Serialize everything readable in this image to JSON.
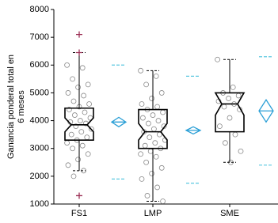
{
  "chart_data": {
    "type": "boxplot",
    "ylabel_lines": [
      "Ganancia ponderal total en",
      "6 meses"
    ],
    "categories": [
      "FS1",
      "LMP",
      "SME"
    ],
    "ylim": [
      1000,
      8000
    ],
    "yticks": [
      1000,
      2000,
      3000,
      4000,
      5000,
      6000,
      7000,
      8000
    ],
    "box_color": "#000000",
    "point_color": "#8a8a8a",
    "outlier_color": "#9b2f55",
    "mean_color": "#2a9fd6",
    "band_color": "#5bc8e0",
    "groups": [
      {
        "whisker_low": 2200,
        "q1": 3300,
        "median": 3850,
        "q3": 4450,
        "whisker_high": 6450,
        "notch_low": 3600,
        "notch_high": 4100,
        "outliers": [
          7100,
          6450,
          1300
        ],
        "mean": 3950,
        "ci_low": 3780,
        "ci_high": 4120,
        "band_low": 1900,
        "band_high": 6000,
        "points": [
          6000,
          5900,
          5500,
          5300,
          5200,
          5000,
          4900,
          4700,
          4600,
          4500,
          4400,
          4300,
          4200,
          4100,
          4000,
          3950,
          3900,
          3800,
          3700,
          3600,
          3500,
          3400,
          3300,
          3200,
          3100,
          3000,
          2800,
          2600,
          2400,
          2200,
          2000
        ]
      },
      {
        "whisker_low": 1100,
        "q1": 3000,
        "median": 3600,
        "q3": 4400,
        "whisker_high": 5800,
        "notch_low": 3300,
        "notch_high": 3900,
        "outliers": [],
        "mean": 3650,
        "ci_low": 3520,
        "ci_high": 3780,
        "band_low": 1750,
        "band_high": 5600,
        "points": [
          5800,
          5600,
          5300,
          5000,
          4800,
          4600,
          4500,
          4400,
          4300,
          4200,
          4100,
          4000,
          3900,
          3800,
          3700,
          3600,
          3500,
          3400,
          3300,
          3200,
          3100,
          3000,
          2900,
          2800,
          2700,
          2500,
          2300,
          2100,
          1900,
          1600,
          1300,
          1100
        ]
      },
      {
        "whisker_low": 2500,
        "q1": 3600,
        "median": 4600,
        "q3": 5000,
        "whisker_high": 6200,
        "notch_low": 4200,
        "notch_high": 5000,
        "outliers": [],
        "mean": 4350,
        "ci_low": 3950,
        "ci_high": 4750,
        "band_low": 2400,
        "band_high": 6300,
        "points": [
          6200,
          5200,
          5000,
          4900,
          4800,
          4700,
          4600,
          4500,
          4400,
          4100,
          3800,
          3500,
          3200,
          2900,
          2500
        ]
      }
    ]
  }
}
